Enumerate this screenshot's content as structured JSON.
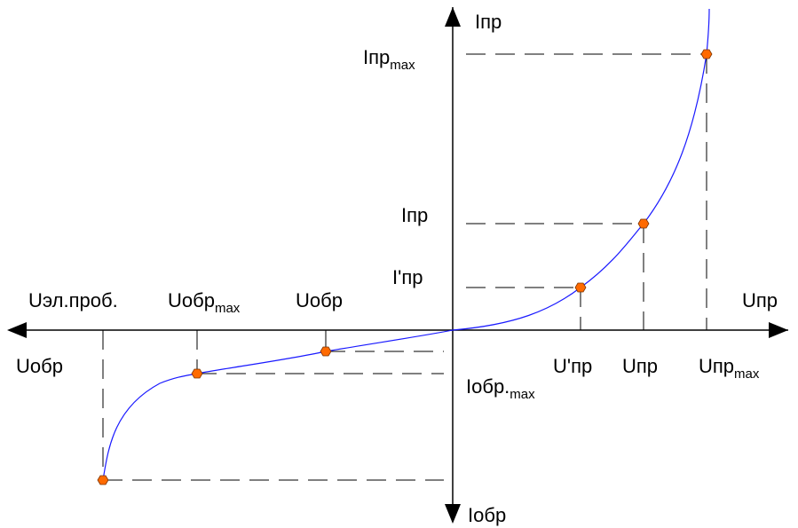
{
  "colors": {
    "curve": "#1a1aff",
    "marker": "#ff6a00",
    "marker_stroke": "#7a3300",
    "axes": "#000000"
  },
  "axes": {
    "y_pos": "Iпр",
    "y_neg": "Iобр",
    "x_pos": "Uпр",
    "x_neg": "Uобр"
  },
  "labels": {
    "i_pr_max": {
      "main": "Iпр",
      "sub": "max"
    },
    "i_pr": "Iпр",
    "i_pr_prime": "I'пр",
    "u_el_prob": "Uэл.проб.",
    "u_obr_max": {
      "main": "Uобр",
      "sub": "max"
    },
    "u_obr": "Uобр",
    "u_pr_prime": "U'пр",
    "u_pr": "Uпр",
    "u_pr_max": {
      "main": "Uпр",
      "sub": "max"
    },
    "i_obr_max": {
      "main": "Iобр.",
      "sub": "max"
    }
  }
}
